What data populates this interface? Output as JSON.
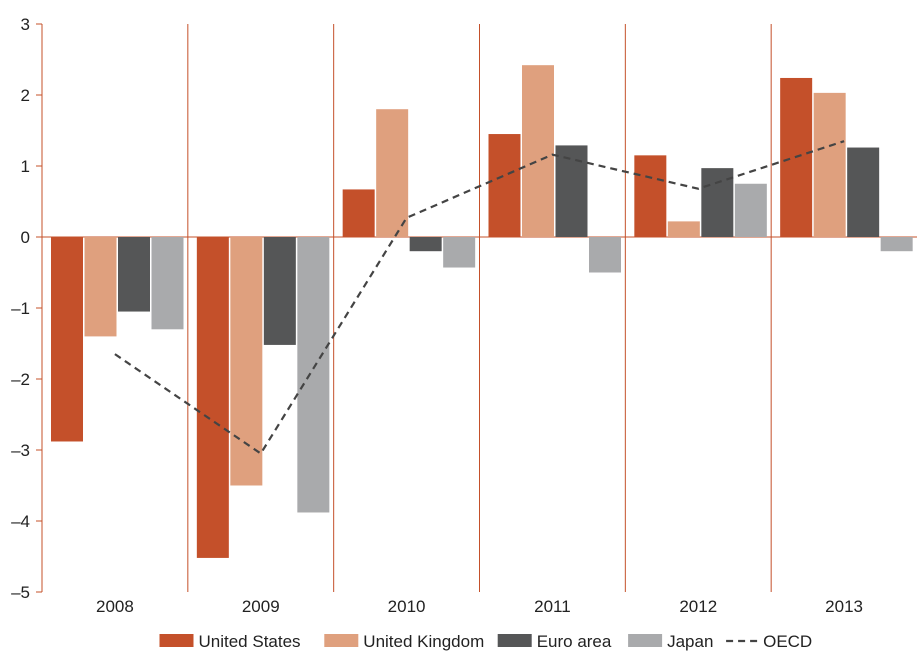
{
  "chart_data": {
    "type": "bar",
    "categories": [
      "2008",
      "2009",
      "2010",
      "2011",
      "2012",
      "2013"
    ],
    "series": [
      {
        "name": "United States",
        "values": [
          -2.88,
          -4.52,
          0.67,
          1.45,
          1.15,
          2.24
        ],
        "color": "#c4502a"
      },
      {
        "name": "United Kingdom",
        "values": [
          -1.4,
          -3.5,
          1.8,
          2.42,
          0.22,
          2.03
        ],
        "color": "#dfa07e"
      },
      {
        "name": "Euro area",
        "values": [
          -1.05,
          -1.52,
          -0.2,
          1.29,
          0.97,
          1.26
        ],
        "color": "#555657"
      },
      {
        "name": "Japan",
        "values": [
          -1.3,
          -3.88,
          -0.43,
          -0.5,
          0.75,
          -0.2
        ],
        "color": "#a9aaac"
      }
    ],
    "line_series": {
      "name": "OECD",
      "values": [
        -1.65,
        -3.05,
        0.27,
        1.16,
        0.68,
        1.35
      ],
      "color": "#444444",
      "style": "dashed"
    },
    "ylim": [
      -5,
      3
    ],
    "yticks": [
      3,
      2,
      1,
      0,
      -1,
      -2,
      -3,
      -4,
      -5
    ],
    "ytick_labels": [
      "3",
      "2",
      "1",
      "0",
      "–1",
      "–2",
      "–3",
      "–4",
      "–5"
    ],
    "title": "",
    "xlabel": "",
    "ylabel": "",
    "grid": false,
    "legend_position": "bottom",
    "axis_color": "#c4502a"
  }
}
